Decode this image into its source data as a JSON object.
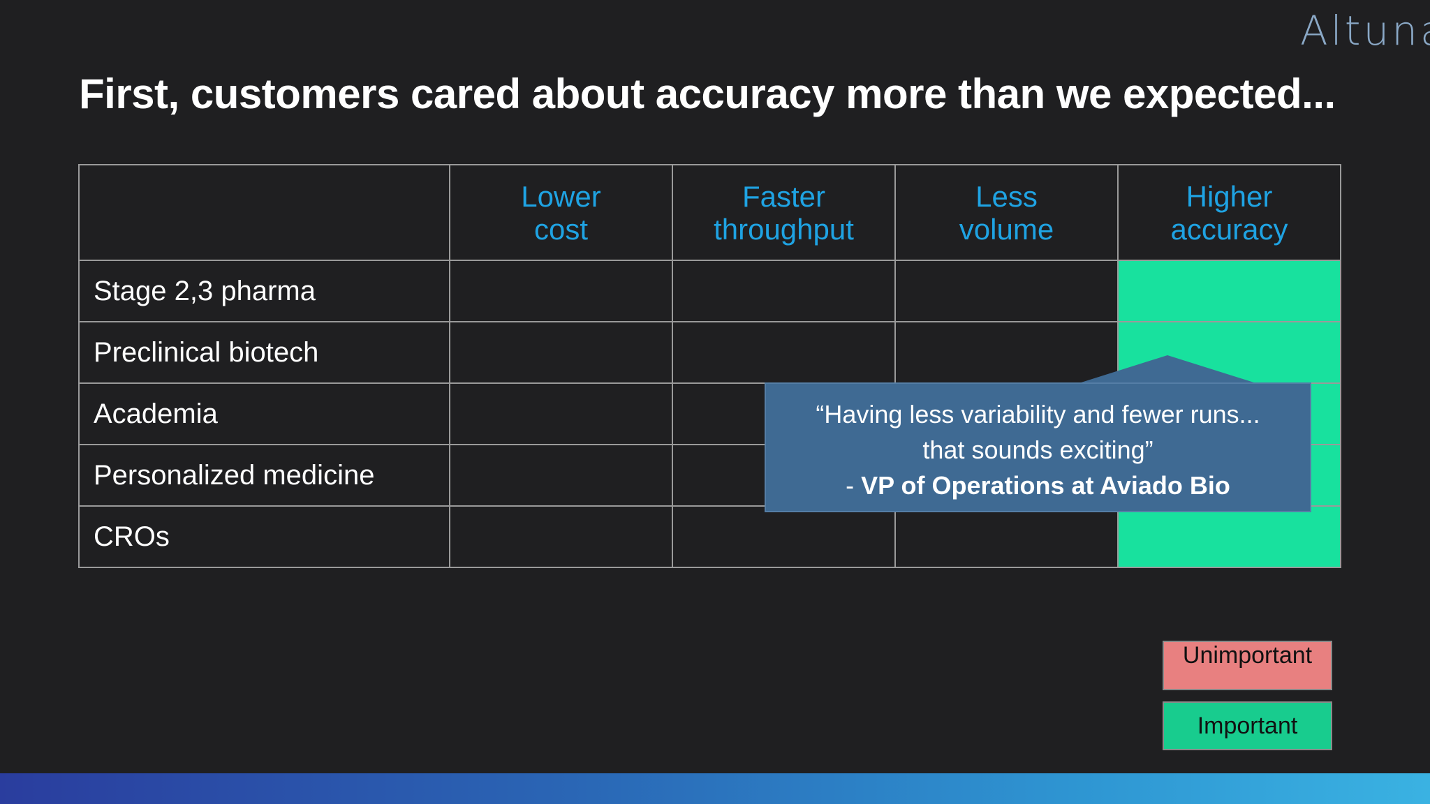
{
  "logo": {
    "text": "Altuna"
  },
  "slide": {
    "title": "First, customers cared about accuracy more than we expected..."
  },
  "table": {
    "columns": [
      {
        "line1": "Lower",
        "line2": "cost"
      },
      {
        "line1": "Faster",
        "line2": "throughput"
      },
      {
        "line1": "Less",
        "line2": "volume"
      },
      {
        "line1": "Higher",
        "line2": "accuracy"
      }
    ],
    "rows": [
      {
        "label": "Stage 2,3 pharma",
        "ratings": [
          "",
          "",
          "",
          "Important"
        ]
      },
      {
        "label": "Preclinical biotech",
        "ratings": [
          "",
          "",
          "",
          "Important"
        ]
      },
      {
        "label": "Academia",
        "ratings": [
          "",
          "",
          "",
          "Important"
        ]
      },
      {
        "label": "Personalized medicine",
        "ratings": [
          "",
          "",
          "",
          "Important"
        ]
      },
      {
        "label": "CROs",
        "ratings": [
          "",
          "",
          "",
          "Important"
        ]
      }
    ]
  },
  "quote": {
    "line1": "“Having less variability and fewer runs...",
    "line2": "that sounds exciting”",
    "dash": "- ",
    "attribution": "VP of Operations at Aviado Bio"
  },
  "legend": {
    "unimportant": "Unimportant",
    "important": "Important"
  },
  "colors": {
    "important": "#18e19e",
    "unimportant": "#e88080",
    "header_text": "#1fa3e3",
    "callout": "#3f6a93"
  }
}
